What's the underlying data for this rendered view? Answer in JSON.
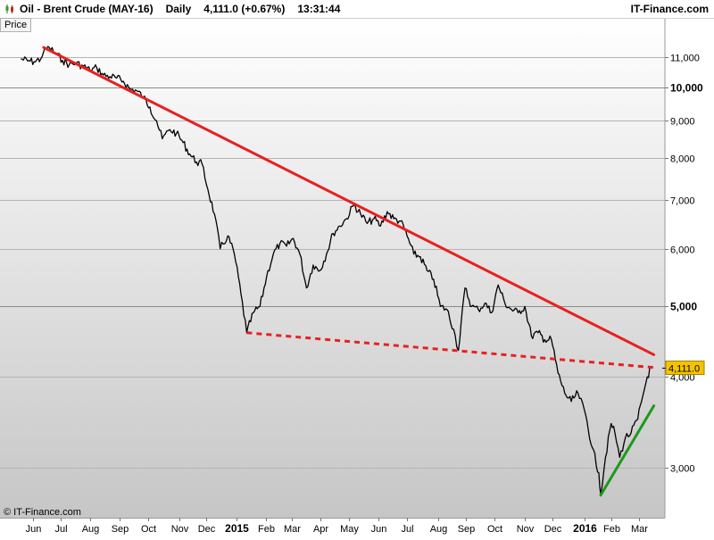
{
  "header": {
    "title": "Oil - Brent Crude (MAY-16)",
    "period": "Daily",
    "last": "4,111.0 (+0.67%)",
    "time": "13:31:44",
    "brand": "IT-Finance.com"
  },
  "price_tab": "Price",
  "watermark": "© IT-Finance.com",
  "chart_data": {
    "type": "line",
    "scale": "log",
    "ylim": [
      2620,
      12100
    ],
    "y_ticks": [
      {
        "value": 3000,
        "label": "3,000",
        "bold": false
      },
      {
        "value": 4000,
        "label": "4,000",
        "bold": false
      },
      {
        "value": 5000,
        "label": "5,000",
        "bold": true
      },
      {
        "value": 6000,
        "label": "6,000",
        "bold": false
      },
      {
        "value": 7000,
        "label": "7,000",
        "bold": false
      },
      {
        "value": 8000,
        "label": "8,000",
        "bold": false
      },
      {
        "value": 9000,
        "label": "9,000",
        "bold": false
      },
      {
        "value": 10000,
        "label": "10,000",
        "bold": true
      },
      {
        "value": 11000,
        "label": "11,000",
        "bold": false
      }
    ],
    "x_domain": [
      "2014-05-19",
      "2016-03-17"
    ],
    "x_ticks": [
      {
        "date": "2014-06-02",
        "label": "Jun",
        "bold": false
      },
      {
        "date": "2014-07-01",
        "label": "Jul",
        "bold": false
      },
      {
        "date": "2014-08-01",
        "label": "Aug",
        "bold": false
      },
      {
        "date": "2014-09-01",
        "label": "Sep",
        "bold": false
      },
      {
        "date": "2014-10-01",
        "label": "Oct",
        "bold": false
      },
      {
        "date": "2014-11-03",
        "label": "Nov",
        "bold": false
      },
      {
        "date": "2014-12-01",
        "label": "Dec",
        "bold": false
      },
      {
        "date": "2015-01-02",
        "label": "2015",
        "bold": true
      },
      {
        "date": "2015-02-02",
        "label": "Feb",
        "bold": false
      },
      {
        "date": "2015-03-02",
        "label": "Mar",
        "bold": false
      },
      {
        "date": "2015-04-01",
        "label": "Apr",
        "bold": false
      },
      {
        "date": "2015-05-01",
        "label": "May",
        "bold": false
      },
      {
        "date": "2015-06-01",
        "label": "Jun",
        "bold": false
      },
      {
        "date": "2015-07-01",
        "label": "Jul",
        "bold": false
      },
      {
        "date": "2015-08-03",
        "label": "Aug",
        "bold": false
      },
      {
        "date": "2015-09-01",
        "label": "Sep",
        "bold": false
      },
      {
        "date": "2015-10-01",
        "label": "Oct",
        "bold": false
      },
      {
        "date": "2015-11-02",
        "label": "Nov",
        "bold": false
      },
      {
        "date": "2015-12-01",
        "label": "Dec",
        "bold": false
      },
      {
        "date": "2016-01-04",
        "label": "2016",
        "bold": true
      },
      {
        "date": "2016-02-01",
        "label": "Feb",
        "bold": false
      },
      {
        "date": "2016-03-01",
        "label": "Mar",
        "bold": false
      }
    ],
    "series": [
      {
        "color": "#000000",
        "points": [
          [
            "2014-05-20",
            10950
          ],
          [
            "2014-05-27",
            10880
          ],
          [
            "2014-06-03",
            10850
          ],
          [
            "2014-06-10",
            10950
          ],
          [
            "2014-06-13",
            11200
          ],
          [
            "2014-06-19",
            11350
          ],
          [
            "2014-06-25",
            11150
          ],
          [
            "2014-07-03",
            10900
          ],
          [
            "2014-07-10",
            10750
          ],
          [
            "2014-07-17",
            10800
          ],
          [
            "2014-07-25",
            10700
          ],
          [
            "2014-08-01",
            10550
          ],
          [
            "2014-08-08",
            10650
          ],
          [
            "2014-08-15",
            10400
          ],
          [
            "2014-08-22",
            10350
          ],
          [
            "2014-08-29",
            10300
          ],
          [
            "2014-09-05",
            10200
          ],
          [
            "2014-09-12",
            9950
          ],
          [
            "2014-09-19",
            9900
          ],
          [
            "2014-09-26",
            9700
          ],
          [
            "2014-10-03",
            9400
          ],
          [
            "2014-10-10",
            9000
          ],
          [
            "2014-10-16",
            8500
          ],
          [
            "2014-10-24",
            8750
          ],
          [
            "2014-10-31",
            8650
          ],
          [
            "2014-11-07",
            8400
          ],
          [
            "2014-11-14",
            8100
          ],
          [
            "2014-11-21",
            7900
          ],
          [
            "2014-11-27",
            7850
          ],
          [
            "2014-12-03",
            7250
          ],
          [
            "2014-12-10",
            6700
          ],
          [
            "2014-12-16",
            6000
          ],
          [
            "2014-12-24",
            6250
          ],
          [
            "2014-12-31",
            5900
          ],
          [
            "2015-01-07",
            5200
          ],
          [
            "2015-01-13",
            4600
          ],
          [
            "2015-01-20",
            4900
          ],
          [
            "2015-01-27",
            5000
          ],
          [
            "2015-02-03",
            5500
          ],
          [
            "2015-02-10",
            5900
          ],
          [
            "2015-02-17",
            6100
          ],
          [
            "2015-02-24",
            6050
          ],
          [
            "2015-03-03",
            6200
          ],
          [
            "2015-03-10",
            5900
          ],
          [
            "2015-03-17",
            5300
          ],
          [
            "2015-03-24",
            5700
          ],
          [
            "2015-03-31",
            5600
          ],
          [
            "2015-04-07",
            5900
          ],
          [
            "2015-04-14",
            6300
          ],
          [
            "2015-04-21",
            6450
          ],
          [
            "2015-04-28",
            6600
          ],
          [
            "2015-05-06",
            6900
          ],
          [
            "2015-05-13",
            6700
          ],
          [
            "2015-05-20",
            6500
          ],
          [
            "2015-05-27",
            6600
          ],
          [
            "2015-06-03",
            6450
          ],
          [
            "2015-06-10",
            6750
          ],
          [
            "2015-06-17",
            6600
          ],
          [
            "2015-06-24",
            6550
          ],
          [
            "2015-07-01",
            6250
          ],
          [
            "2015-07-08",
            5900
          ],
          [
            "2015-07-15",
            5850
          ],
          [
            "2015-07-22",
            5600
          ],
          [
            "2015-07-29",
            5450
          ],
          [
            "2015-08-05",
            5000
          ],
          [
            "2015-08-12",
            4950
          ],
          [
            "2015-08-19",
            4650
          ],
          [
            "2015-08-24",
            4350
          ],
          [
            "2015-08-31",
            5300
          ],
          [
            "2015-09-07",
            5000
          ],
          [
            "2015-09-14",
            4950
          ],
          [
            "2015-09-21",
            5050
          ],
          [
            "2015-09-28",
            4900
          ],
          [
            "2015-10-05",
            5350
          ],
          [
            "2015-10-12",
            5050
          ],
          [
            "2015-10-19",
            4950
          ],
          [
            "2015-10-26",
            4900
          ],
          [
            "2015-11-02",
            5000
          ],
          [
            "2015-11-09",
            4550
          ],
          [
            "2015-11-16",
            4600
          ],
          [
            "2015-11-23",
            4500
          ],
          [
            "2015-11-30",
            4500
          ],
          [
            "2015-12-07",
            4050
          ],
          [
            "2015-12-14",
            3800
          ],
          [
            "2015-12-21",
            3700
          ],
          [
            "2015-12-28",
            3800
          ],
          [
            "2016-01-05",
            3550
          ],
          [
            "2016-01-12",
            3200
          ],
          [
            "2016-01-19",
            2950
          ],
          [
            "2016-01-21",
            2750
          ],
          [
            "2016-01-26",
            3100
          ],
          [
            "2016-02-01",
            3450
          ],
          [
            "2016-02-05",
            3350
          ],
          [
            "2016-02-10",
            3100
          ],
          [
            "2016-02-16",
            3300
          ],
          [
            "2016-02-22",
            3350
          ],
          [
            "2016-02-29",
            3500
          ],
          [
            "2016-03-04",
            3700
          ],
          [
            "2016-03-10",
            4000
          ],
          [
            "2016-03-14",
            4111
          ]
        ]
      }
    ],
    "trendlines": [
      {
        "style": "solid",
        "color": "#e82020",
        "from": [
          "2014-06-13",
          11350
        ],
        "to": [
          "2016-03-17",
          4290
        ]
      },
      {
        "style": "dashed",
        "color": "#e82020",
        "from": [
          "2015-01-13",
          4600
        ],
        "to": [
          "2016-03-17",
          4120
        ]
      },
      {
        "style": "solid",
        "color": "#1a9a1a",
        "from": [
          "2016-01-21",
          2750
        ],
        "to": [
          "2016-03-17",
          3650
        ]
      }
    ],
    "last_price": {
      "value": 4111,
      "label": "4,111.0",
      "color": "#f5c400"
    }
  }
}
